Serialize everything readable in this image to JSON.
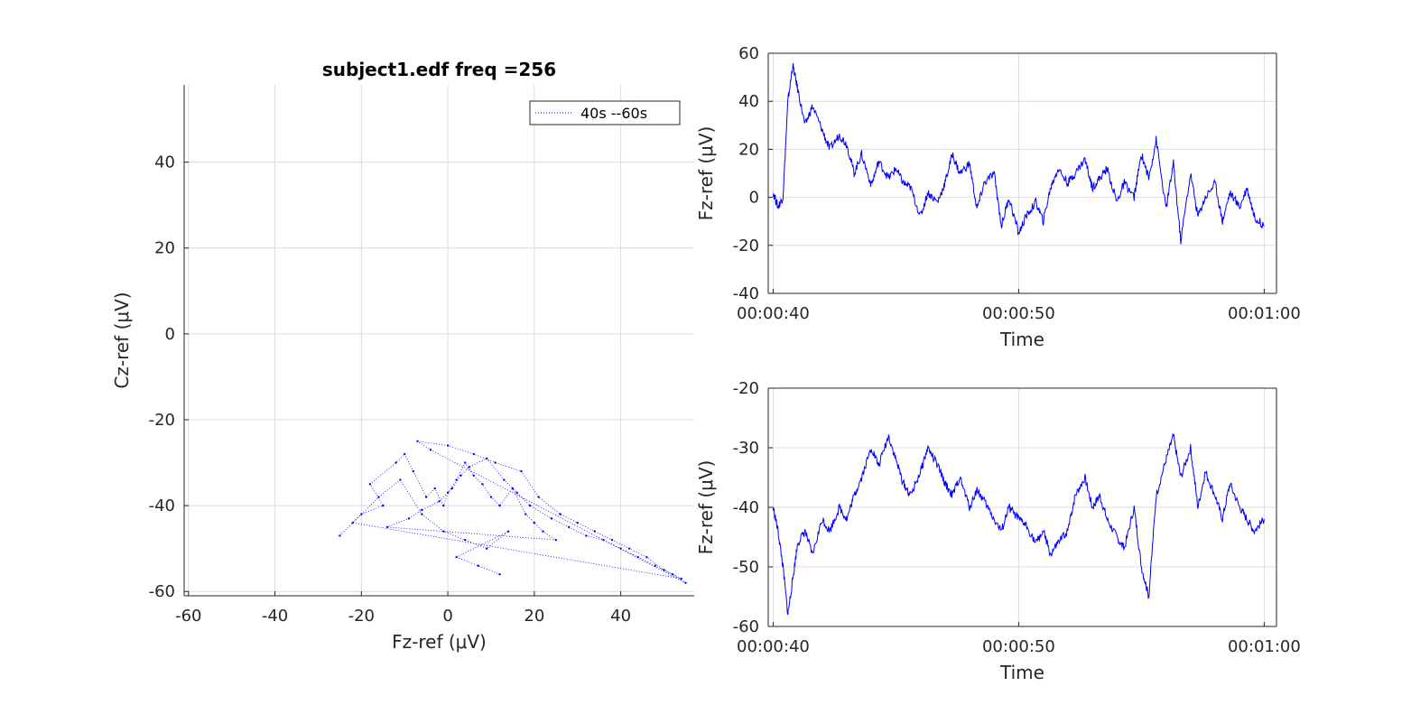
{
  "colors": {
    "series": "#0000ff",
    "axis": "#262626",
    "grid": "#dcdcdc",
    "background": "#ffffff"
  },
  "chart_data": [
    {
      "type": "scatter",
      "title": "subject1.edf freq =256",
      "xlabel": "Fz-ref (μV)",
      "ylabel": "Cz-ref (μV)",
      "xlim": [
        -61,
        57
      ],
      "ylim": [
        -61,
        58
      ],
      "xticks": [
        -60,
        -40,
        -20,
        0,
        20,
        40
      ],
      "yticks": [
        -60,
        -40,
        -20,
        0,
        20,
        40
      ],
      "grid": true,
      "legend": {
        "label": "40s --60s",
        "placement": "top-right",
        "style": "dotted"
      },
      "marker": "dot",
      "series": [
        {
          "name": "40s --60s",
          "x": [
            -25,
            -20,
            -15,
            -18,
            -12,
            -10,
            -8,
            -5,
            -3,
            -1,
            0,
            2,
            4,
            6,
            8,
            10,
            12,
            15,
            18,
            20,
            22,
            25,
            -14,
            -9,
            -6,
            -2,
            1,
            3,
            5,
            9,
            13,
            16,
            19,
            24,
            28,
            32,
            36,
            40,
            44,
            48,
            52,
            55,
            -4,
            -7,
            0,
            6,
            11,
            17,
            21,
            26,
            30,
            34,
            38,
            42,
            46,
            50,
            54,
            -22,
            -16,
            -11,
            -6,
            -1,
            4,
            9,
            14,
            2,
            7,
            12
          ],
          "y": [
            -47,
            -42,
            -40,
            -35,
            -30,
            -28,
            -32,
            -38,
            -36,
            -40,
            -37,
            -34,
            -30,
            -33,
            -35,
            -38,
            -40,
            -36,
            -42,
            -44,
            -46,
            -48,
            -45,
            -43,
            -41,
            -39,
            -36,
            -33,
            -31,
            -29,
            -34,
            -37,
            -40,
            -43,
            -45,
            -47,
            -48,
            -50,
            -52,
            -54,
            -56,
            -58,
            -27,
            -25,
            -26,
            -28,
            -30,
            -32,
            -38,
            -42,
            -44,
            -46,
            -48,
            -50,
            -52,
            -55,
            -57,
            -44,
            -38,
            -34,
            -42,
            -46,
            -48,
            -50,
            -46,
            -52,
            -54,
            -56
          ]
        }
      ]
    },
    {
      "type": "line",
      "xlabel": "Time",
      "ylabel": "Fz-ref (μV)",
      "xlim": [
        39.8,
        60.5
      ],
      "ylim": [
        -40,
        60
      ],
      "xticks": [
        40,
        50,
        60
      ],
      "xticklabels": [
        "00:00:40",
        "00:00:50",
        "00:01:00"
      ],
      "yticks": [
        -40,
        -20,
        0,
        20,
        40,
        60
      ],
      "grid": true,
      "series": [
        {
          "name": "",
          "x": [
            40.0,
            40.2,
            40.4,
            40.6,
            40.8,
            41.0,
            41.3,
            41.6,
            42.0,
            42.3,
            42.7,
            43.0,
            43.3,
            43.6,
            44.0,
            44.3,
            44.7,
            45.0,
            45.3,
            45.6,
            46.0,
            46.3,
            46.7,
            47.0,
            47.3,
            47.6,
            48.0,
            48.3,
            48.6,
            49.0,
            49.3,
            49.6,
            50.0,
            50.3,
            50.7,
            51.0,
            51.3,
            51.6,
            52.0,
            52.3,
            52.7,
            53.0,
            53.3,
            53.6,
            54.0,
            54.3,
            54.7,
            55.0,
            55.3,
            55.6,
            56.0,
            56.3,
            56.6,
            57.0,
            57.3,
            57.6,
            58.0,
            58.3,
            58.6,
            59.0,
            59.3,
            59.6,
            60.0
          ],
          "y": [
            2,
            -4,
            0,
            40,
            55,
            45,
            30,
            38,
            28,
            20,
            26,
            22,
            10,
            18,
            5,
            15,
            8,
            12,
            6,
            4,
            -8,
            2,
            -2,
            6,
            18,
            10,
            14,
            -5,
            6,
            10,
            -12,
            0,
            -15,
            -8,
            -2,
            -10,
            4,
            12,
            6,
            10,
            16,
            4,
            8,
            12,
            -2,
            6,
            0,
            18,
            8,
            24,
            -5,
            14,
            -18,
            10,
            -8,
            0,
            6,
            -10,
            2,
            -4,
            4,
            -8,
            -12
          ]
        }
      ]
    },
    {
      "type": "line",
      "xlabel": "Time",
      "ylabel": "Fz-ref (μV)",
      "xlim": [
        39.8,
        60.5
      ],
      "ylim": [
        -60,
        -20
      ],
      "xticks": [
        40,
        50,
        60
      ],
      "xticklabels": [
        "00:00:40",
        "00:00:50",
        "00:01:00"
      ],
      "yticks": [
        -60,
        -50,
        -40,
        -30,
        -20
      ],
      "grid": true,
      "series": [
        {
          "name": "",
          "x": [
            40.0,
            40.2,
            40.4,
            40.6,
            40.8,
            41.0,
            41.3,
            41.6,
            42.0,
            42.3,
            42.7,
            43.0,
            43.3,
            43.6,
            44.0,
            44.3,
            44.7,
            45.0,
            45.3,
            45.6,
            46.0,
            46.3,
            46.7,
            47.0,
            47.3,
            47.6,
            48.0,
            48.3,
            48.6,
            49.0,
            49.3,
            49.6,
            50.0,
            50.3,
            50.7,
            51.0,
            51.3,
            51.6,
            52.0,
            52.3,
            52.7,
            53.0,
            53.3,
            53.6,
            54.0,
            54.3,
            54.7,
            55.0,
            55.3,
            55.6,
            56.0,
            56.3,
            56.6,
            57.0,
            57.3,
            57.6,
            58.0,
            58.3,
            58.6,
            59.0,
            59.3,
            59.6,
            60.0
          ],
          "y": [
            -40,
            -44,
            -50,
            -58,
            -52,
            -46,
            -44,
            -48,
            -42,
            -44,
            -40,
            -42,
            -38,
            -35,
            -30,
            -33,
            -28,
            -32,
            -36,
            -38,
            -34,
            -30,
            -33,
            -36,
            -38,
            -35,
            -40,
            -37,
            -39,
            -42,
            -44,
            -40,
            -42,
            -43,
            -46,
            -44,
            -48,
            -46,
            -44,
            -38,
            -35,
            -40,
            -38,
            -42,
            -45,
            -47,
            -40,
            -50,
            -55,
            -38,
            -32,
            -28,
            -35,
            -30,
            -40,
            -34,
            -38,
            -42,
            -36,
            -40,
            -42,
            -44,
            -42
          ]
        }
      ]
    }
  ]
}
